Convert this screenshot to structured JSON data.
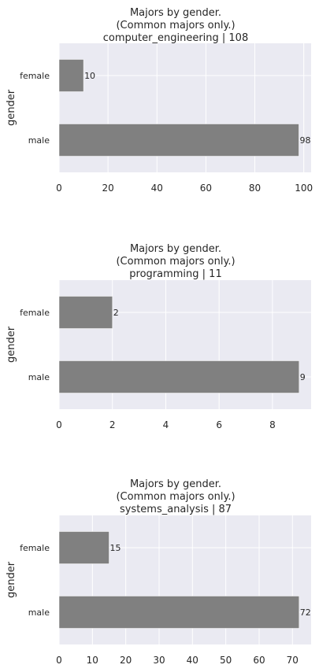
{
  "chart_data": [
    {
      "type": "bar",
      "orientation": "horizontal",
      "title_lines": [
        "Majors by gender.",
        "(Common majors only.)",
        "computer_engineering | 108"
      ],
      "ylabel": "gender",
      "xlabel": "",
      "categories": [
        "female",
        "male"
      ],
      "values": [
        10,
        98
      ],
      "data_labels": [
        "10",
        "98"
      ],
      "xlim": [
        0,
        103
      ],
      "xticks": [
        0,
        20,
        40,
        60,
        80,
        100
      ],
      "xtick_labels": [
        "0",
        "20",
        "40",
        "60",
        "80",
        "100"
      ],
      "grid": true,
      "bar_color": "#808080",
      "background_color": "#EAEAF2"
    },
    {
      "type": "bar",
      "orientation": "horizontal",
      "title_lines": [
        "Majors by gender.",
        "(Common majors only.)",
        "programming | 11"
      ],
      "ylabel": "gender",
      "xlabel": "",
      "categories": [
        "female",
        "male"
      ],
      "values": [
        2,
        9
      ],
      "data_labels": [
        "2",
        "9"
      ],
      "xlim": [
        0,
        9.45
      ],
      "xticks": [
        0,
        2,
        4,
        6,
        8
      ],
      "xtick_labels": [
        "0",
        "2",
        "4",
        "6",
        "8"
      ],
      "grid": true,
      "bar_color": "#808080",
      "background_color": "#EAEAF2"
    },
    {
      "type": "bar",
      "orientation": "horizontal",
      "title_lines": [
        "Majors by gender.",
        "(Common majors only.)",
        "systems_analysis | 87"
      ],
      "ylabel": "gender",
      "xlabel": "",
      "categories": [
        "female",
        "male"
      ],
      "values": [
        15,
        72
      ],
      "data_labels": [
        "15",
        "72"
      ],
      "xlim": [
        0,
        75.6
      ],
      "xticks": [
        0,
        10,
        20,
        30,
        40,
        50,
        60,
        70
      ],
      "xtick_labels": [
        "0",
        "10",
        "20",
        "30",
        "40",
        "50",
        "60",
        "70"
      ],
      "grid": true,
      "bar_color": "#808080",
      "background_color": "#EAEAF2"
    }
  ]
}
